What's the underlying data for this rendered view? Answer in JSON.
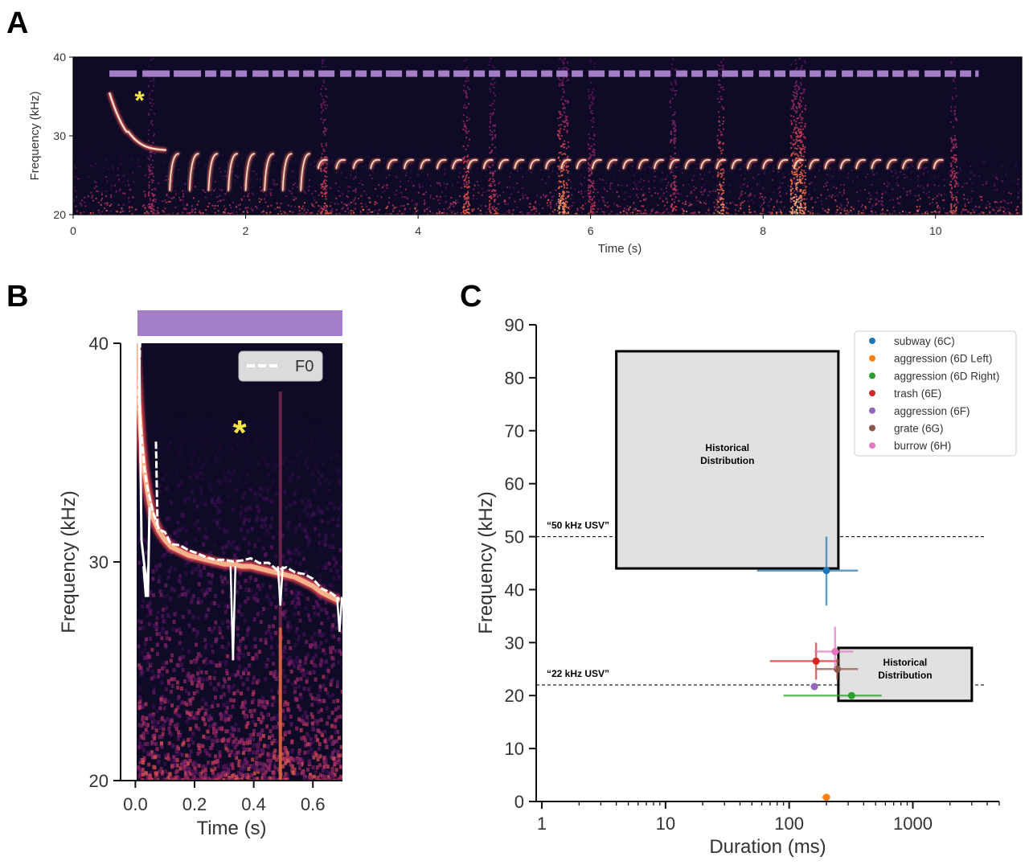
{
  "panels": {
    "a": "A",
    "b": "B",
    "c": "C"
  },
  "colors": {
    "spec_bg": "#0f0a25",
    "bar": "#a57ec8",
    "star": "#f7e44a",
    "box_fill": "#e1e1e1",
    "trace": "#fbe1c7"
  },
  "chart_data": [
    {
      "id": "A",
      "type": "heatmap",
      "title": "",
      "xlabel": "Time (s)",
      "ylabel": "Frequency (kHz)",
      "xlim": [
        0,
        11
      ],
      "ylim": [
        20,
        40
      ],
      "xticks": [
        "0",
        "2",
        "4",
        "6",
        "8",
        "10"
      ],
      "yticks": [
        "20",
        "30",
        "40"
      ],
      "annotation_star": "*",
      "first_call": {
        "start_s": 0.42,
        "end_s": 1.08,
        "start_khz": 35.5,
        "end_khz": 28.2
      },
      "call_onsets_s": [
        1.12,
        1.35,
        1.57,
        1.8,
        2.0,
        2.22,
        2.43,
        2.64,
        2.84,
        3.05,
        3.25,
        3.45,
        3.65,
        3.84,
        4.03,
        4.22,
        4.4,
        4.58,
        4.76,
        4.94,
        5.12,
        5.3,
        5.48,
        5.66,
        5.84,
        6.02,
        6.2,
        6.38,
        6.56,
        6.74,
        6.92,
        7.1,
        7.28,
        7.46,
        7.64,
        7.82,
        8.0,
        8.18,
        8.36,
        8.54,
        8.72,
        8.9,
        9.08,
        9.26,
        9.44,
        9.62,
        9.8,
        9.98
      ],
      "bar_span_s": [
        0.42,
        10.5
      ],
      "bar_level_khz": 37.9
    },
    {
      "id": "B",
      "type": "heatmap",
      "xlabel": "Time (s)",
      "ylabel": "Frequency (kHz)",
      "xlim": [
        -0.05,
        0.7
      ],
      "ylim": [
        20,
        40
      ],
      "xticks": [
        "0.0",
        "0.2",
        "0.4",
        "0.6"
      ],
      "yticks": [
        "20",
        "30",
        "40"
      ],
      "legend": "F0",
      "annotation_star": "*",
      "f0_trace": {
        "t": [
          0.0,
          0.01,
          0.02,
          0.03,
          0.04,
          0.05,
          0.06,
          0.08,
          0.1,
          0.12,
          0.15,
          0.18,
          0.21,
          0.24,
          0.27,
          0.3,
          0.33,
          0.36,
          0.39,
          0.42,
          0.45,
          0.48,
          0.51,
          0.54,
          0.57,
          0.6,
          0.63,
          0.66,
          0.69
        ],
        "khz": [
          40,
          37.5,
          35.5,
          34.2,
          33.3,
          32.6,
          32.0,
          31.4,
          31.0,
          30.7,
          30.5,
          30.3,
          30.2,
          30.1,
          30.0,
          29.9,
          29.9,
          29.8,
          29.8,
          29.7,
          29.6,
          29.5,
          29.4,
          29.3,
          29.1,
          28.9,
          28.6,
          28.4,
          28.2
        ]
      },
      "dips": [
        {
          "t": 0.035,
          "khz": 28.4
        },
        {
          "t": 0.33,
          "khz": 25.5
        },
        {
          "t": 0.49,
          "khz": 28.0
        },
        {
          "t": 0.69,
          "khz": 26.8
        }
      ],
      "noise_line_t": 0.49
    },
    {
      "id": "C",
      "type": "scatter",
      "xlabel": "Duration (ms)",
      "ylabel": "Frequency (kHz)",
      "xscale": "log",
      "xlim": [
        0.9,
        5000
      ],
      "ylim": [
        0,
        90
      ],
      "xticks": [
        "1",
        "10",
        "100",
        "1000"
      ],
      "yticks": [
        "0",
        "10",
        "20",
        "30",
        "40",
        "50",
        "60",
        "70",
        "80",
        "90"
      ],
      "reference_lines": [
        {
          "y": 50,
          "label": "“50 kHz USV”"
        },
        {
          "y": 22,
          "label": "“22 kHz USV”"
        }
      ],
      "boxes": [
        {
          "x0": 4,
          "x1": 250,
          "y0": 44,
          "y1": 85,
          "line1": "Historical",
          "line2": "Distribution"
        },
        {
          "x0": 250,
          "x1": 3000,
          "y0": 19,
          "y1": 29,
          "line1": "Historical",
          "line2": "Distribution"
        }
      ],
      "legend_position": "upper-right",
      "series": [
        {
          "name": "subway (6C)",
          "color": "#1f77b4",
          "x": 200,
          "y": 43.6,
          "xerr": [
            55,
            360
          ],
          "yerr": [
            37,
            50
          ]
        },
        {
          "name": "aggression (6D Left)",
          "color": "#ff7f0e",
          "x": 200,
          "y": 0.8,
          "xerr": [
            185,
            215
          ],
          "yerr": [
            0.4,
            1.2
          ]
        },
        {
          "name": "aggression (6D Right)",
          "color": "#2ca02c",
          "x": 320,
          "y": 20.0,
          "xerr": [
            90,
            560
          ],
          "yerr": [
            19.8,
            20.2
          ]
        },
        {
          "name": "trash (6E)",
          "color": "#d62728",
          "x": 165,
          "y": 26.5,
          "xerr": [
            70,
            255
          ],
          "yerr": [
            23,
            30
          ]
        },
        {
          "name": "aggression (6F)",
          "color": "#9467bd",
          "x": 160,
          "y": 21.7,
          "xerr": [
            150,
            170
          ],
          "yerr": [
            21.2,
            22.2
          ]
        },
        {
          "name": "grate (6G)",
          "color": "#8c564b",
          "x": 245,
          "y": 25.0,
          "xerr": [
            165,
            360
          ],
          "yerr": [
            23,
            27
          ]
        },
        {
          "name": "burrow (6H)",
          "color": "#e377c2",
          "x": 235,
          "y": 28.3,
          "xerr": [
            160,
            330
          ],
          "yerr": [
            25,
            33
          ]
        }
      ]
    }
  ]
}
